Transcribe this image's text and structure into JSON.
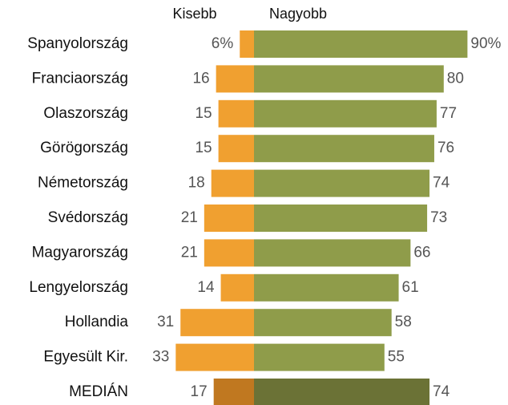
{
  "chart_data": {
    "type": "bar",
    "layout": "diverging",
    "categories": [
      "Spanyolország",
      "Franciaország",
      "Olaszország",
      "Görögország",
      "Németország",
      "Svédország",
      "Magyarország",
      "Lengyelország",
      "Hollandia",
      "Egyesült Kir.",
      "MEDIÁN"
    ],
    "series": [
      {
        "name": "Kisebb",
        "side": "left",
        "color": "#f0a030",
        "colors": [
          "#f0a030",
          "#f0a030",
          "#f0a030",
          "#f0a030",
          "#f0a030",
          "#f0a030",
          "#f0a030",
          "#f0a030",
          "#f0a030",
          "#f0a030",
          "#c07820"
        ],
        "values": [
          6,
          16,
          15,
          15,
          18,
          21,
          21,
          14,
          31,
          33,
          17
        ],
        "value_labels": [
          "6%",
          "16",
          "15",
          "15",
          "18",
          "21",
          "21",
          "14",
          "31",
          "33",
          "17"
        ]
      },
      {
        "name": "Nagyobb",
        "side": "right",
        "color": "#8f9c4a",
        "colors": [
          "#8f9c4a",
          "#8f9c4a",
          "#8f9c4a",
          "#8f9c4a",
          "#8f9c4a",
          "#8f9c4a",
          "#8f9c4a",
          "#8f9c4a",
          "#8f9c4a",
          "#8f9c4a",
          "#6b7236"
        ],
        "values": [
          90,
          80,
          77,
          76,
          74,
          73,
          66,
          61,
          58,
          55,
          74
        ],
        "value_labels": [
          "90%",
          "80",
          "77",
          "76",
          "74",
          "73",
          "66",
          "61",
          "58",
          "55",
          "74"
        ]
      }
    ]
  }
}
